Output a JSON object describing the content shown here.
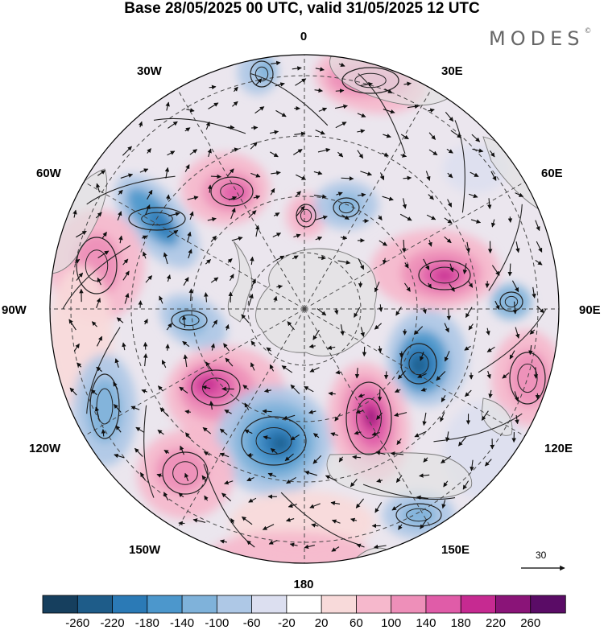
{
  "title": "Base 28/05/2025 00 UTC, valid 31/05/2025 12 UTC",
  "brand": "MODES",
  "brand_mark": "©",
  "longitude_labels": {
    "top": "0",
    "bottom": "180",
    "left": "90W",
    "right": "90E",
    "w30": "30W",
    "w60": "60W",
    "w120": "120W",
    "w150": "150W",
    "e30": "30E",
    "e60": "60E",
    "e120": "120E",
    "e150": "150E"
  },
  "vector_scale_label": "30",
  "colorbar": {
    "ticks": [
      "-260",
      "-220",
      "-180",
      "-140",
      "-100",
      "-60",
      "-20",
      "20",
      "60",
      "100",
      "140",
      "180",
      "220",
      "260"
    ],
    "colors": [
      "#163f5e",
      "#1e5c89",
      "#2b7ab6",
      "#4c97cc",
      "#7fb2da",
      "#aec8e6",
      "#dcdff0",
      "#ffffff",
      "#f8dada",
      "#f6b8cc",
      "#ee8fb9",
      "#e05ca8",
      "#c62a91",
      "#8a1478",
      "#5a0c66"
    ]
  },
  "map_colors": {
    "background": "#ebe6ee",
    "land": "#e2e2e2",
    "coast": "#7a7a7a",
    "grid": "#444444",
    "arrow": "#111111"
  }
}
